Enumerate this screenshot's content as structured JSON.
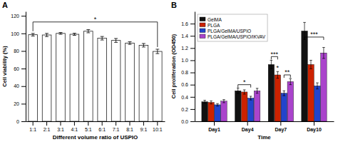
{
  "chart_data": [
    {
      "type": "bar",
      "title": "A",
      "xlabel": "Different volume ratio of USPIO",
      "ylabel": "Cell viability (%)",
      "categories": [
        "1:1",
        "2:1",
        "3:1",
        "4:1",
        "5:1",
        "6:1",
        "7:1",
        "8:1",
        "9:1",
        "10:1"
      ],
      "values": [
        98.5,
        98.2,
        100.0,
        99.0,
        102.5,
        94.5,
        92.0,
        89.0,
        86.5,
        79.5
      ],
      "errors": [
        1.5,
        1.8,
        1.0,
        1.2,
        1.8,
        2.0,
        2.2,
        1.5,
        2.0,
        2.5
      ],
      "color": "#ffffff",
      "ylim": [
        0,
        125
      ],
      "yticks": [
        0,
        20,
        40,
        60,
        80,
        100,
        120
      ],
      "grid": false,
      "annotations": [
        {
          "text": "*",
          "x": [
            "1:1",
            "10:1"
          ],
          "y": 113
        }
      ]
    },
    {
      "type": "bar",
      "title": "B",
      "xlabel": "Time",
      "ylabel": "Cell proliferation (OD450)",
      "categories": [
        "Day1",
        "Day4",
        "Day7",
        "Day10"
      ],
      "series": [
        {
          "name": "GelMA",
          "color": "#111111",
          "values": [
            0.32,
            0.5,
            0.93,
            1.48
          ],
          "errors": [
            0.025,
            0.045,
            0.07,
            0.14
          ]
        },
        {
          "name": "PLGA",
          "color": "#cc2200",
          "values": [
            0.31,
            0.48,
            0.76,
            0.93
          ],
          "errors": [
            0.025,
            0.035,
            0.055,
            0.07
          ]
        },
        {
          "name": "PLGA/GelMA/USPIO",
          "color": "#2244cc",
          "values": [
            0.27,
            0.38,
            0.46,
            0.58
          ],
          "errors": [
            0.02,
            0.03,
            0.04,
            0.05
          ]
        },
        {
          "name": "PLGA/GelMA/USPIO/IKVAV",
          "color": "#aa44cc",
          "values": [
            0.33,
            0.5,
            0.65,
            1.12
          ],
          "errors": [
            0.025,
            0.04,
            0.05,
            0.09
          ]
        }
      ],
      "ylim": [
        0.0,
        1.8
      ],
      "yticks": [
        {
          "value": 0,
          "label": "0.0"
        },
        0.2,
        0.4,
        0.6,
        0.8,
        {
          "value": 1,
          "label": "1.0"
        },
        1.2,
        1.4,
        1.6
      ],
      "grid": false,
      "legend": "upper left",
      "annotations": [
        {
          "text": "*",
          "x": "Day4",
          "series": [
            "GelMA",
            "PLGA/GelMA/USPIO"
          ],
          "y": 0.6
        },
        {
          "text": "***",
          "x": "Day7",
          "series": [
            "GelMA",
            "PLGA"
          ],
          "y": 1.06
        },
        {
          "text": "*",
          "x": "Day7",
          "series": [
            "PLGA"
          ],
          "y": 0.845
        },
        {
          "text": "**",
          "x": "Day7",
          "series": [
            "PLGA/GelMA/USPIO",
            "PLGA/GelMA/USPIO/IKVAV"
          ],
          "y": 0.76
        },
        {
          "text": "***",
          "x": "Day10",
          "series": [
            "GelMA",
            "PLGA/GelMA/USPIO/IKVAV"
          ],
          "y": 1.38
        }
      ]
    }
  ]
}
